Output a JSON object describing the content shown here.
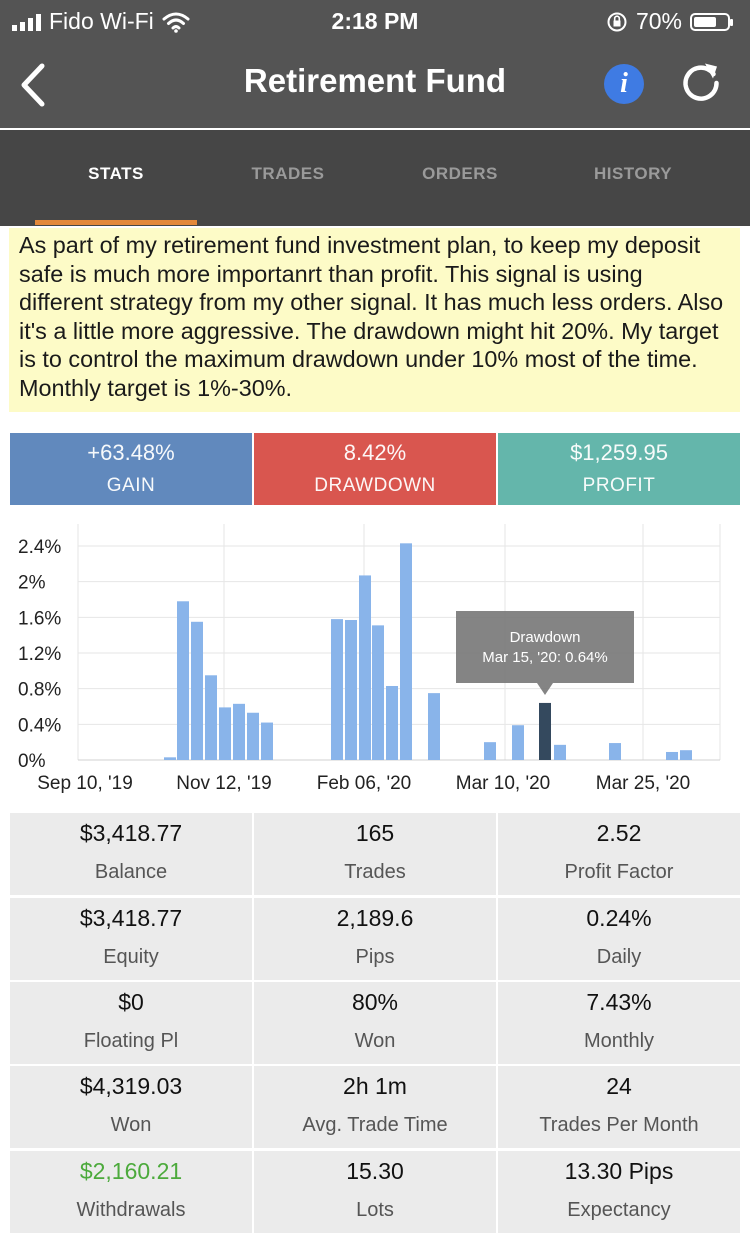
{
  "status_bar": {
    "carrier": "Fido Wi-Fi",
    "time": "2:18 PM",
    "battery": "70%"
  },
  "nav": {
    "title": "Retirement Fund",
    "info_label": "i"
  },
  "tabs": [
    {
      "label": "STATS",
      "active": true
    },
    {
      "label": "TRADES",
      "active": false
    },
    {
      "label": "ORDERS",
      "active": false
    },
    {
      "label": "HISTORY",
      "active": false
    }
  ],
  "description": "As part of my retirement fund investment plan, to keep my deposit safe is much more importanrt than profit. This signal is using different strategy from my other signal. It has much less orders. Also it's a little more aggressive. The drawdown might hit 20%. My target is to control the maximum drawdown under 10% most of the time. Monthly target is 1%-30%.",
  "kpis": [
    {
      "value": "+63.48%",
      "label": "GAIN",
      "color": "#6189bd"
    },
    {
      "value": "8.42%",
      "label": "DRAWDOWN",
      "color": "#d9564f"
    },
    {
      "value": "$1,259.95",
      "label": "PROFIT",
      "color": "#64b6ab"
    }
  ],
  "chart_data": {
    "type": "bar",
    "yticks": [
      "2.4%",
      "2%",
      "1.6%",
      "1.2%",
      "0.8%",
      "0.4%",
      "0%"
    ],
    "ylim": [
      0,
      2.4
    ],
    "xtick_labels": [
      "Sep 10, '19",
      "Nov 12, '19",
      "Feb 06, '20",
      "Mar 10, '20",
      "Mar 25, '20"
    ],
    "grid": true,
    "bar_color": "#89b4ea",
    "highlight_color": "#34495e",
    "series": [
      {
        "values": [
          0.03,
          1.78,
          1.55,
          0.95,
          0.59,
          0.63,
          0.53,
          0.42,
          1.58,
          1.57,
          2.07,
          1.51,
          0.83,
          2.43,
          0.75,
          0.2,
          0.39,
          0.64,
          0.17,
          0.19,
          0.09,
          0.11
        ],
        "highlight_index": 17
      }
    ],
    "tooltip": {
      "title": "Drawdown",
      "text": "Mar 15, '20: 0.64%"
    }
  },
  "stats": [
    {
      "value": "$3,418.77",
      "label": "Balance"
    },
    {
      "value": "165",
      "label": "Trades"
    },
    {
      "value": "2.52",
      "label": "Profit Factor"
    },
    {
      "value": "$3,418.77",
      "label": "Equity"
    },
    {
      "value": "2,189.6",
      "label": "Pips"
    },
    {
      "value": "0.24%",
      "label": "Daily"
    },
    {
      "value": "$0",
      "label": "Floating Pl"
    },
    {
      "value": "80%",
      "label": "Won"
    },
    {
      "value": "7.43%",
      "label": "Monthly"
    },
    {
      "value": "$4,319.03",
      "label": "Won"
    },
    {
      "value": "2h 1m",
      "label": "Avg. Trade Time"
    },
    {
      "value": "24",
      "label": "Trades Per Month"
    },
    {
      "value": "$2,160.21",
      "label": "Withdrawals",
      "color": "green"
    },
    {
      "value": "15.30",
      "label": "Lots"
    },
    {
      "value": "13.30 Pips",
      "label": "Expectancy"
    }
  ]
}
